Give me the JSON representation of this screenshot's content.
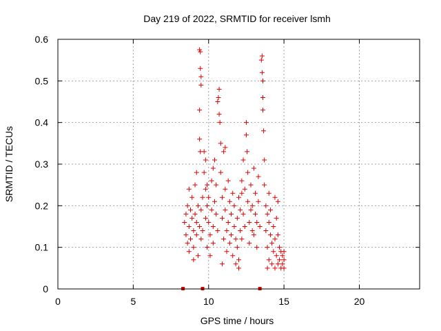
{
  "chart_data": {
    "type": "scatter",
    "title": "Day 219 of 2022, SRMTID for receiver lsmh",
    "xlabel": "GPS time / hours",
    "ylabel": "SRMTID / TECUs",
    "xlim": [
      0,
      24
    ],
    "ylim": [
      0,
      0.6
    ],
    "xticks": [
      0,
      5,
      10,
      15,
      20
    ],
    "xtick_labels": [
      "0",
      "5",
      "10",
      "15",
      "20"
    ],
    "yticks": [
      0,
      0.1,
      0.2,
      0.3,
      0.4,
      0.5,
      0.6
    ],
    "ytick_labels": [
      "0",
      "0.1",
      "0.2",
      "0.3",
      "0.4",
      "0.5",
      "0.6"
    ],
    "grid": true,
    "marker": "+",
    "color": "#e00000",
    "series": [
      {
        "name": "SRMTID",
        "points": [
          [
            8.4,
            0.16
          ],
          [
            8.5,
            0.18
          ],
          [
            8.5,
            0.13
          ],
          [
            8.6,
            0.2
          ],
          [
            8.6,
            0.11
          ],
          [
            8.7,
            0.15
          ],
          [
            8.7,
            0.09
          ],
          [
            8.8,
            0.19
          ],
          [
            8.8,
            0.12
          ],
          [
            8.9,
            0.17
          ],
          [
            8.9,
            0.22
          ],
          [
            9.0,
            0.14
          ],
          [
            9.0,
            0.1
          ],
          [
            9.1,
            0.25
          ],
          [
            9.1,
            0.18
          ],
          [
            9.2,
            0.13
          ],
          [
            9.2,
            0.16
          ],
          [
            9.3,
            0.08
          ],
          [
            9.3,
            0.2
          ],
          [
            9.4,
            0.15
          ],
          [
            9.4,
            0.575
          ],
          [
            9.45,
            0.57
          ],
          [
            9.45,
            0.53
          ],
          [
            9.5,
            0.51
          ],
          [
            9.5,
            0.49
          ],
          [
            9.4,
            0.43
          ],
          [
            9.4,
            0.36
          ],
          [
            9.45,
            0.33
          ],
          [
            9.5,
            0.19
          ],
          [
            9.5,
            0.12
          ],
          [
            9.6,
            0.14
          ],
          [
            9.6,
            0.22
          ],
          [
            9.7,
            0.33
          ],
          [
            9.7,
            0.28
          ],
          [
            9.8,
            0.24
          ],
          [
            9.8,
            0.31
          ],
          [
            9.8,
            0.17
          ],
          [
            9.9,
            0.25
          ],
          [
            9.9,
            0.2
          ],
          [
            9.9,
            0.1
          ],
          [
            10.0,
            0.16
          ],
          [
            10.0,
            0.22
          ],
          [
            10.1,
            0.13
          ],
          [
            10.1,
            0.08
          ],
          [
            10.2,
            0.19
          ],
          [
            10.2,
            0.26
          ],
          [
            10.3,
            0.15
          ],
          [
            10.3,
            0.11
          ],
          [
            10.4,
            0.31
          ],
          [
            10.4,
            0.21
          ],
          [
            10.5,
            0.18
          ],
          [
            10.5,
            0.25
          ],
          [
            10.6,
            0.14
          ],
          [
            10.6,
            0.45
          ],
          [
            10.65,
            0.46
          ],
          [
            10.7,
            0.48
          ],
          [
            10.7,
            0.42
          ],
          [
            10.75,
            0.4
          ],
          [
            10.8,
            0.35
          ],
          [
            10.8,
            0.28
          ],
          [
            10.9,
            0.22
          ],
          [
            10.9,
            0.17
          ],
          [
            11.0,
            0.33
          ],
          [
            11.0,
            0.12
          ],
          [
            11.1,
            0.24
          ],
          [
            11.1,
            0.19
          ],
          [
            11.2,
            0.14
          ],
          [
            11.2,
            0.09
          ],
          [
            11.3,
            0.26
          ],
          [
            11.3,
            0.16
          ],
          [
            11.4,
            0.21
          ],
          [
            11.4,
            0.11
          ],
          [
            11.5,
            0.18
          ],
          [
            11.5,
            0.13
          ],
          [
            11.6,
            0.23
          ],
          [
            11.6,
            0.08
          ],
          [
            11.7,
            0.15
          ],
          [
            11.7,
            0.2
          ],
          [
            11.8,
            0.12
          ],
          [
            11.8,
            0.06
          ],
          [
            11.9,
            0.17
          ],
          [
            11.9,
            0.1
          ],
          [
            12.0,
            0.22
          ],
          [
            12.0,
            0.07
          ],
          [
            12.1,
            0.14
          ],
          [
            12.1,
            0.19
          ],
          [
            12.2,
            0.26
          ],
          [
            12.2,
            0.12
          ],
          [
            12.3,
            0.31
          ],
          [
            12.3,
            0.18
          ],
          [
            12.4,
            0.24
          ],
          [
            12.4,
            0.15
          ],
          [
            12.5,
            0.4
          ],
          [
            12.5,
            0.37
          ],
          [
            12.55,
            0.33
          ],
          [
            12.6,
            0.28
          ],
          [
            12.6,
            0.21
          ],
          [
            12.7,
            0.16
          ],
          [
            12.7,
            0.11
          ],
          [
            12.8,
            0.19
          ],
          [
            12.8,
            0.25
          ],
          [
            12.9,
            0.14
          ],
          [
            12.9,
            0.2
          ],
          [
            13.0,
            0.29
          ],
          [
            13.0,
            0.13
          ],
          [
            13.1,
            0.18
          ],
          [
            13.1,
            0.23
          ],
          [
            13.2,
            0.16
          ],
          [
            13.2,
            0.1
          ],
          [
            13.3,
            0.21
          ],
          [
            13.4,
            0.15
          ],
          [
            13.5,
            0.55
          ],
          [
            13.55,
            0.56
          ],
          [
            13.55,
            0.52
          ],
          [
            13.6,
            0.5
          ],
          [
            13.6,
            0.46
          ],
          [
            13.6,
            0.43
          ],
          [
            13.65,
            0.38
          ],
          [
            13.7,
            0.31
          ],
          [
            13.7,
            0.25
          ],
          [
            13.8,
            0.2
          ],
          [
            13.8,
            0.14
          ],
          [
            13.9,
            0.18
          ],
          [
            13.9,
            0.1
          ],
          [
            14.0,
            0.16
          ],
          [
            14.0,
            0.07
          ],
          [
            14.1,
            0.13
          ],
          [
            14.1,
            0.19
          ],
          [
            14.2,
            0.11
          ],
          [
            14.2,
            0.06
          ],
          [
            14.3,
            0.15
          ],
          [
            14.3,
            0.09
          ],
          [
            14.4,
            0.22
          ],
          [
            14.4,
            0.12
          ],
          [
            14.5,
            0.17
          ],
          [
            14.5,
            0.08
          ],
          [
            14.6,
            0.13
          ],
          [
            14.6,
            0.06
          ],
          [
            14.7,
            0.1
          ],
          [
            14.7,
            0.07
          ],
          [
            14.8,
            0.09
          ],
          [
            14.8,
            0.05
          ],
          [
            14.9,
            0.08
          ],
          [
            14.9,
            0.06
          ],
          [
            15.0,
            0.07
          ],
          [
            15.0,
            0.05
          ],
          [
            15.0,
            0.09
          ],
          [
            8.7,
            0.24
          ],
          [
            9.2,
            0.28
          ],
          [
            10.3,
            0.29
          ],
          [
            11.1,
            0.34
          ],
          [
            12.2,
            0.23
          ],
          [
            13.3,
            0.27
          ],
          [
            14.0,
            0.23
          ],
          [
            14.6,
            0.21
          ],
          [
            9.0,
            0.07
          ],
          [
            10.9,
            0.06
          ],
          [
            12.0,
            0.05
          ],
          [
            13.9,
            0.05
          ],
          [
            14.4,
            0.05
          ]
        ]
      }
    ],
    "base_markers_x": [
      8.3,
      9.6,
      13.4
    ]
  }
}
